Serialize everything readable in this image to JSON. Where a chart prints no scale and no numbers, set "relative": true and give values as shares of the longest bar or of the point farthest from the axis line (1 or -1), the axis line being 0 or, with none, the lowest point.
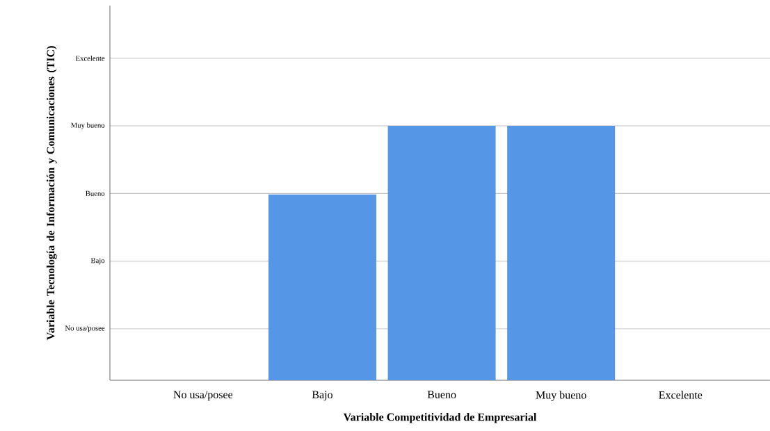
{
  "chart_data": {
    "type": "bar",
    "xlabel": "Variable Competitividad de Empresarial",
    "ylabel": "Variable Tecnología de Información y Comunicaciones (TIC)",
    "categories": [
      "No usa/posee",
      "Bajo",
      "Bueno",
      "Muy bueno",
      "Excelente"
    ],
    "y_categories": [
      "Excelente",
      "Muy bueno",
      "Bueno",
      "Bajo",
      "No usa/posee"
    ],
    "values": [
      null,
      0.73,
      1,
      1,
      null
    ],
    "color": "#5596e6",
    "relative": true,
    "grid": "y"
  }
}
